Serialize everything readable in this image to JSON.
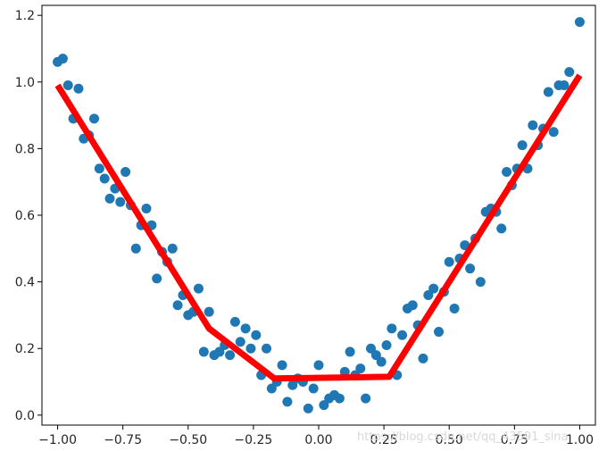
{
  "chart_data": {
    "type": "scatter",
    "title": "",
    "xlabel": "",
    "ylabel": "",
    "xlim": [
      -1.06,
      1.06
    ],
    "ylim": [
      -0.03,
      1.23
    ],
    "x_ticks": [
      -1.0,
      -0.75,
      -0.5,
      -0.25,
      0.0,
      0.25,
      0.5,
      0.75,
      1.0
    ],
    "x_tick_labels": [
      "−1.00",
      "−0.75",
      "−0.50",
      "−0.25",
      "0.00",
      "0.25",
      "0.50",
      "0.75",
      "1.00"
    ],
    "y_ticks": [
      0.0,
      0.2,
      0.4,
      0.6,
      0.8,
      1.0,
      1.2
    ],
    "y_tick_labels": [
      "0.0",
      "0.2",
      "0.4",
      "0.6",
      "0.8",
      "1.0",
      "1.2"
    ],
    "grid": false,
    "legend": "none",
    "series": [
      {
        "kind": "scatter",
        "color": "#1f77b4",
        "points": [
          [
            -1.0,
            1.06
          ],
          [
            -0.98,
            1.07
          ],
          [
            -0.96,
            0.99
          ],
          [
            -0.94,
            0.89
          ],
          [
            -0.92,
            0.98
          ],
          [
            -0.9,
            0.83
          ],
          [
            -0.88,
            0.84
          ],
          [
            -0.86,
            0.89
          ],
          [
            -0.84,
            0.74
          ],
          [
            -0.82,
            0.71
          ],
          [
            -0.8,
            0.65
          ],
          [
            -0.78,
            0.68
          ],
          [
            -0.76,
            0.64
          ],
          [
            -0.74,
            0.73
          ],
          [
            -0.72,
            0.63
          ],
          [
            -0.7,
            0.5
          ],
          [
            -0.68,
            0.57
          ],
          [
            -0.66,
            0.62
          ],
          [
            -0.64,
            0.57
          ],
          [
            -0.62,
            0.41
          ],
          [
            -0.6,
            0.49
          ],
          [
            -0.58,
            0.46
          ],
          [
            -0.56,
            0.5
          ],
          [
            -0.54,
            0.33
          ],
          [
            -0.52,
            0.36
          ],
          [
            -0.5,
            0.3
          ],
          [
            -0.48,
            0.31
          ],
          [
            -0.46,
            0.38
          ],
          [
            -0.44,
            0.19
          ],
          [
            -0.42,
            0.31
          ],
          [
            -0.4,
            0.18
          ],
          [
            -0.38,
            0.19
          ],
          [
            -0.36,
            0.21
          ],
          [
            -0.34,
            0.18
          ],
          [
            -0.32,
            0.28
          ],
          [
            -0.3,
            0.22
          ],
          [
            -0.28,
            0.26
          ],
          [
            -0.26,
            0.2
          ],
          [
            -0.24,
            0.24
          ],
          [
            -0.22,
            0.12
          ],
          [
            -0.2,
            0.2
          ],
          [
            -0.18,
            0.08
          ],
          [
            -0.16,
            0.1
          ],
          [
            -0.14,
            0.15
          ],
          [
            -0.12,
            0.04
          ],
          [
            -0.1,
            0.09
          ],
          [
            -0.08,
            0.11
          ],
          [
            -0.06,
            0.1
          ],
          [
            -0.04,
            0.02
          ],
          [
            -0.02,
            0.08
          ],
          [
            0.0,
            0.15
          ],
          [
            0.02,
            0.03
          ],
          [
            0.04,
            0.05
          ],
          [
            0.06,
            0.06
          ],
          [
            0.08,
            0.05
          ],
          [
            0.1,
            0.13
          ],
          [
            0.12,
            0.19
          ],
          [
            0.14,
            0.12
          ],
          [
            0.16,
            0.14
          ],
          [
            0.18,
            0.05
          ],
          [
            0.2,
            0.2
          ],
          [
            0.22,
            0.18
          ],
          [
            0.24,
            0.16
          ],
          [
            0.26,
            0.21
          ],
          [
            0.28,
            0.26
          ],
          [
            0.3,
            0.12
          ],
          [
            0.32,
            0.24
          ],
          [
            0.34,
            0.32
          ],
          [
            0.36,
            0.33
          ],
          [
            0.38,
            0.27
          ],
          [
            0.4,
            0.17
          ],
          [
            0.42,
            0.36
          ],
          [
            0.44,
            0.38
          ],
          [
            0.46,
            0.25
          ],
          [
            0.48,
            0.37
          ],
          [
            0.5,
            0.46
          ],
          [
            0.52,
            0.32
          ],
          [
            0.54,
            0.47
          ],
          [
            0.56,
            0.51
          ],
          [
            0.58,
            0.44
          ],
          [
            0.6,
            0.53
          ],
          [
            0.62,
            0.4
          ],
          [
            0.64,
            0.61
          ],
          [
            0.66,
            0.62
          ],
          [
            0.68,
            0.61
          ],
          [
            0.7,
            0.56
          ],
          [
            0.72,
            0.73
          ],
          [
            0.74,
            0.69
          ],
          [
            0.76,
            0.74
          ],
          [
            0.78,
            0.81
          ],
          [
            0.8,
            0.74
          ],
          [
            0.82,
            0.87
          ],
          [
            0.84,
            0.81
          ],
          [
            0.86,
            0.86
          ],
          [
            0.88,
            0.97
          ],
          [
            0.9,
            0.85
          ],
          [
            0.92,
            0.99
          ],
          [
            0.94,
            0.99
          ],
          [
            0.96,
            1.03
          ],
          [
            1.0,
            1.18
          ]
        ]
      },
      {
        "kind": "line",
        "color": "#ff0000",
        "points": [
          [
            -1.0,
            0.99
          ],
          [
            -0.42,
            0.26
          ],
          [
            -0.17,
            0.11
          ],
          [
            0.27,
            0.115
          ],
          [
            1.0,
            1.02
          ]
        ]
      }
    ],
    "watermark": "https://blog.csdn.net/qq_43591_sina"
  }
}
